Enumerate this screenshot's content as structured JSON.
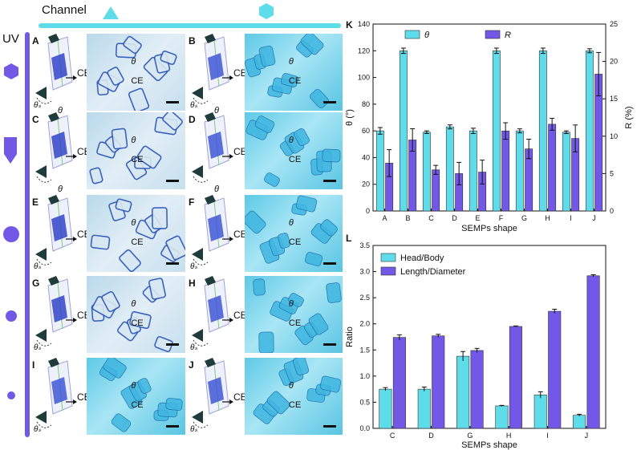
{
  "header": {
    "channel_label": "Channel",
    "uv_label": "UV"
  },
  "panels": {
    "A": {
      "letter": "A",
      "ce": "CE",
      "theta": "θ",
      "theta_s": "θₛ",
      "photo_ce": "CE",
      "photo_theta": "θ",
      "tone": "blue"
    },
    "B": {
      "letter": "B",
      "ce": "CE",
      "theta": "θ",
      "theta_s": "θₛ",
      "photo_ce": "CE",
      "photo_theta": "θ",
      "tone": "cyan"
    },
    "C": {
      "letter": "C",
      "ce": "CE",
      "theta": "θ",
      "theta_s": "",
      "photo_ce": "CE",
      "photo_theta": "θ",
      "tone": "blue"
    },
    "D": {
      "letter": "D",
      "ce": "CE",
      "theta": "θ",
      "theta_s": "",
      "photo_ce": "CE",
      "photo_theta": "θ",
      "tone": "cyan"
    },
    "E": {
      "letter": "E",
      "ce": "CE",
      "theta": "",
      "theta_s": "θₛ",
      "photo_ce": "CE",
      "photo_theta": "θ",
      "tone": "blue"
    },
    "F": {
      "letter": "F",
      "ce": "CE",
      "theta": "",
      "theta_s": "θₛ",
      "photo_ce": "CE",
      "photo_theta": "θ",
      "tone": "cyan"
    },
    "G": {
      "letter": "G",
      "ce": "CE",
      "theta": "",
      "theta_s": "θₛ",
      "photo_ce": "CE",
      "photo_theta": "θ",
      "tone": "blue"
    },
    "H": {
      "letter": "H",
      "ce": "CE",
      "theta": "",
      "theta_s": "θₛ",
      "photo_ce": "CE",
      "photo_theta": "θ",
      "tone": "cyan"
    },
    "I": {
      "letter": "I",
      "ce": "CE",
      "theta": "",
      "theta_s": "θₛ",
      "photo_ce": "CE",
      "photo_theta": "θ",
      "tone": "cyan"
    },
    "J": {
      "letter": "J",
      "ce": "CE",
      "theta": "",
      "theta_s": "θₛ",
      "photo_ce": "CE",
      "photo_theta": "θ",
      "tone": "cyan"
    }
  },
  "colors": {
    "cyan": "#5fdcea",
    "purple": "#7158e6",
    "dark_purple": "#3b2fc2",
    "photo_blue": "#2a55b8"
  },
  "chart_data": [
    {
      "type": "bar",
      "panel_label": "K",
      "categories": [
        "A",
        "B",
        "C",
        "D",
        "E",
        "F",
        "G",
        "H",
        "I",
        "J"
      ],
      "xlabel": "SEMPs shape",
      "ylabel": "θ (°)",
      "ylabel2": "R (%)",
      "ylim": [
        0,
        140
      ],
      "y2lim": [
        0,
        25
      ],
      "yticks": [
        "0",
        "20",
        "40",
        "60",
        "80",
        "100",
        "120",
        "140"
      ],
      "y2ticks": [
        "0",
        "5",
        "10",
        "15",
        "20",
        "25"
      ],
      "legend": [
        "θ",
        "R"
      ],
      "legend_position": "top",
      "series": [
        {
          "name": "θ",
          "axis": "left",
          "values": [
            60,
            120,
            59,
            63,
            60,
            120,
            60,
            120,
            59,
            120
          ],
          "errors": [
            2.5,
            2,
            1,
            1.5,
            2,
            2,
            1.5,
            2,
            1,
            1.5
          ]
        },
        {
          "name": "R",
          "axis": "right",
          "values": [
            6.4,
            9.5,
            5.5,
            5.0,
            5.2,
            10.7,
            8.3,
            11.6,
            9.7,
            18.3
          ],
          "errors": [
            1.8,
            1.5,
            0.6,
            1.5,
            1.6,
            1.1,
            1.3,
            0.8,
            1.8,
            2.9
          ]
        }
      ]
    },
    {
      "type": "bar",
      "panel_label": "L",
      "categories": [
        "C",
        "D",
        "G",
        "H",
        "I",
        "J"
      ],
      "xlabel": "SEMPs shape",
      "ylabel": "Ratio",
      "ylim": [
        0,
        3.5
      ],
      "yticks": [
        "0.0",
        "0.5",
        "1.0",
        "1.5",
        "2.0",
        "2.5",
        "3.0",
        "3.5"
      ],
      "legend": [
        "Head/Body",
        "Length/Diameter"
      ],
      "legend_position": "top-left",
      "series": [
        {
          "name": "Head/Body",
          "values": [
            0.75,
            0.75,
            1.38,
            0.43,
            0.64,
            0.25
          ],
          "errors": [
            0.03,
            0.04,
            0.09,
            0.01,
            0.06,
            0.02
          ]
        },
        {
          "name": "Length/Diameter",
          "values": [
            1.74,
            1.77,
            1.49,
            1.95,
            2.24,
            2.92
          ],
          "errors": [
            0.05,
            0.03,
            0.04,
            0.01,
            0.04,
            0.02
          ]
        }
      ]
    }
  ]
}
